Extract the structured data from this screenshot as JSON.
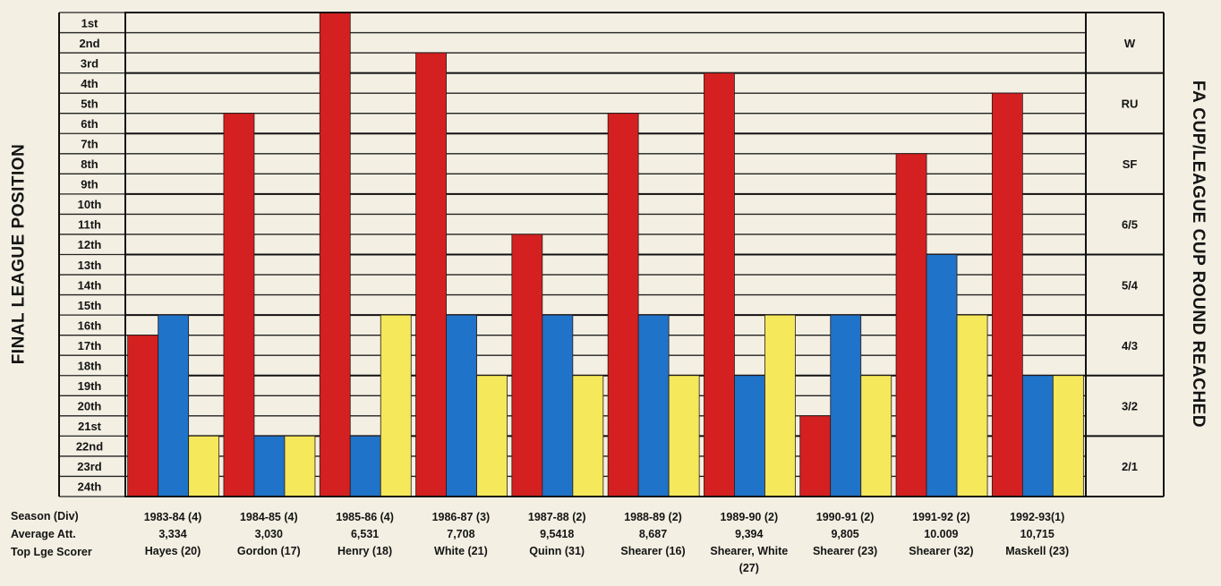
{
  "ylabel_left": "FINAL LEAGUE POSITION",
  "ylabel_right": "FA CUP/LEAGUE CUP ROUND REACHED",
  "row_labels": {
    "season": "Season (Div)",
    "attendance": "Average Att.",
    "scorer": "Top Lge Scorer"
  },
  "colors": {
    "league": "#d42020",
    "fa_cup": "#1f73c8",
    "league_cup": "#f5e85a",
    "background": "#f3efe3"
  },
  "chart_data": {
    "type": "bar",
    "categories": [
      "1983-84 (4)",
      "1984-85 (4)",
      "1985-86 (4)",
      "1986-87 (3)",
      "1987-88 (2)",
      "1988-89 (2)",
      "1989-90 (2)",
      "1990-91 (2)",
      "1991-92 (2)",
      "1992-93(1)"
    ],
    "left_axis_ticks": [
      "1st",
      "2nd",
      "3rd",
      "4th",
      "5th",
      "6th",
      "7th",
      "8th",
      "9th",
      "10th",
      "11th",
      "12th",
      "13th",
      "14th",
      "15th",
      "16th",
      "17th",
      "18th",
      "19th",
      "20th",
      "21st",
      "22nd",
      "23rd",
      "24th"
    ],
    "right_axis_ticks": [
      "W",
      "RU",
      "SF",
      "6/5",
      "5/4",
      "4/3",
      "3/2",
      "2/1"
    ],
    "series": [
      {
        "key": "league",
        "values": [
          17,
          6,
          1,
          3,
          12,
          6,
          4,
          21,
          8,
          5
        ]
      },
      {
        "key": "fa_cup",
        "values": [
          3,
          1,
          1,
          3,
          3,
          3,
          2,
          3,
          4,
          2
        ]
      },
      {
        "key": "league_cup",
        "values": [
          1,
          1,
          3,
          2,
          2,
          2,
          3,
          2,
          3,
          2
        ]
      }
    ],
    "attendance": [
      "3,334",
      "3,030",
      "6,531",
      "7,708",
      "9,5418",
      "8,687",
      "9,394",
      "9,805",
      "10.009",
      "10,715"
    ],
    "top_scorer": [
      "Hayes (20)",
      "Gordon (17)",
      "Henry (18)",
      "White (21)",
      "Quinn (31)",
      "Shearer (16)",
      "Shearer, White",
      "Shearer (23)",
      "Shearer (32)",
      "Maskell (23)"
    ],
    "top_scorer_extra": [
      "",
      "",
      "",
      "",
      "",
      "",
      "(27)",
      "",
      "",
      ""
    ]
  }
}
